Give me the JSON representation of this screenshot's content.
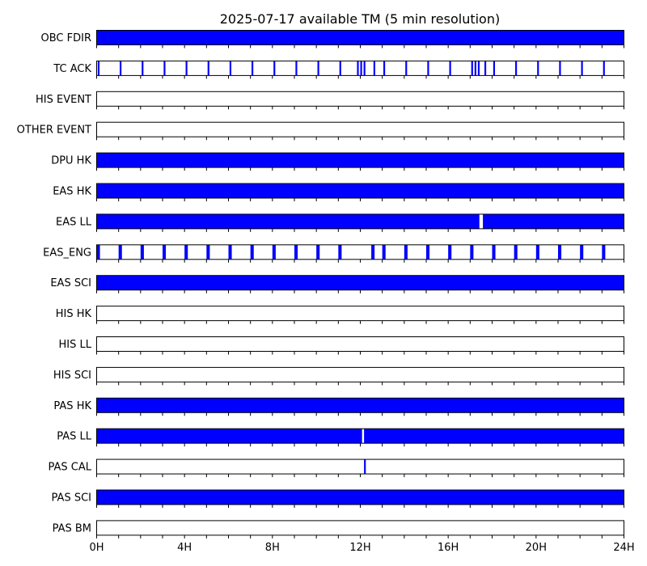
{
  "chart_data": {
    "type": "timeline",
    "title": "2025-07-17 available TM (5 min resolution)",
    "x_unit": "hours",
    "x_range": [
      0,
      24
    ],
    "x_ticks": [
      {
        "value": 0,
        "label": "0H"
      },
      {
        "value": 4,
        "label": "4H"
      },
      {
        "value": 8,
        "label": "8H"
      },
      {
        "value": 12,
        "label": "12H"
      },
      {
        "value": 16,
        "label": "16H"
      },
      {
        "value": 20,
        "label": "20H"
      },
      {
        "value": 24,
        "label": "24H"
      }
    ],
    "x_minor_ticks_every_hours": 1,
    "fill_color": "#0000ff",
    "series": [
      {
        "name": "OBC FDIR",
        "intervals": [
          [
            0,
            24
          ]
        ]
      },
      {
        "name": "TC ACK",
        "intervals": [
          [
            0.05,
            0.13
          ],
          [
            1.05,
            1.13
          ],
          [
            2.05,
            2.13
          ],
          [
            3.05,
            3.13
          ],
          [
            4.05,
            4.13
          ],
          [
            5.05,
            5.13
          ],
          [
            6.05,
            6.13
          ],
          [
            7.05,
            7.13
          ],
          [
            8.05,
            8.13
          ],
          [
            9.05,
            9.13
          ],
          [
            10.05,
            10.13
          ],
          [
            11.05,
            11.13
          ],
          [
            11.85,
            11.93
          ],
          [
            12.0,
            12.08
          ],
          [
            12.15,
            12.23
          ],
          [
            12.6,
            12.68
          ],
          [
            13.05,
            13.13
          ],
          [
            14.05,
            14.13
          ],
          [
            15.05,
            15.13
          ],
          [
            16.05,
            16.13
          ],
          [
            17.05,
            17.13
          ],
          [
            17.2,
            17.28
          ],
          [
            17.35,
            17.43
          ],
          [
            17.65,
            17.73
          ],
          [
            18.05,
            18.13
          ],
          [
            19.05,
            19.13
          ],
          [
            20.05,
            20.13
          ],
          [
            21.05,
            21.13
          ],
          [
            22.05,
            22.13
          ],
          [
            23.05,
            23.13
          ]
        ]
      },
      {
        "name": "HIS EVENT",
        "intervals": []
      },
      {
        "name": "OTHER EVENT",
        "intervals": []
      },
      {
        "name": "DPU HK",
        "intervals": [
          [
            0,
            24
          ]
        ]
      },
      {
        "name": "EAS HK",
        "intervals": [
          [
            0,
            24
          ]
        ]
      },
      {
        "name": "EAS LL",
        "intervals": [
          [
            0,
            17.42
          ],
          [
            17.58,
            24
          ]
        ]
      },
      {
        "name": "EAS_ENG",
        "intervals": [
          [
            0.0,
            0.15
          ],
          [
            1.0,
            1.15
          ],
          [
            2.0,
            2.15
          ],
          [
            3.0,
            3.15
          ],
          [
            4.0,
            4.15
          ],
          [
            5.0,
            5.15
          ],
          [
            6.0,
            6.15
          ],
          [
            7.0,
            7.15
          ],
          [
            8.0,
            8.15
          ],
          [
            9.0,
            9.15
          ],
          [
            10.0,
            10.15
          ],
          [
            11.0,
            11.15
          ],
          [
            12.5,
            12.65
          ],
          [
            13.0,
            13.15
          ],
          [
            14.0,
            14.15
          ],
          [
            15.0,
            15.15
          ],
          [
            16.0,
            16.15
          ],
          [
            17.0,
            17.15
          ],
          [
            18.0,
            18.15
          ],
          [
            19.0,
            19.15
          ],
          [
            20.0,
            20.15
          ],
          [
            21.0,
            21.15
          ],
          [
            22.0,
            22.15
          ],
          [
            23.0,
            23.15
          ]
        ]
      },
      {
        "name": "EAS SCI",
        "intervals": [
          [
            0,
            24
          ]
        ]
      },
      {
        "name": "HIS HK",
        "intervals": []
      },
      {
        "name": "HIS LL",
        "intervals": []
      },
      {
        "name": "HIS SCI",
        "intervals": []
      },
      {
        "name": "PAS HK",
        "intervals": [
          [
            0,
            24
          ]
        ]
      },
      {
        "name": "PAS LL",
        "intervals": [
          [
            0,
            12.08
          ],
          [
            12.17,
            24
          ]
        ]
      },
      {
        "name": "PAS CAL",
        "intervals": [
          [
            12.17,
            12.25
          ]
        ]
      },
      {
        "name": "PAS SCI",
        "intervals": [
          [
            0,
            24
          ]
        ]
      },
      {
        "name": "PAS BM",
        "intervals": []
      }
    ]
  }
}
